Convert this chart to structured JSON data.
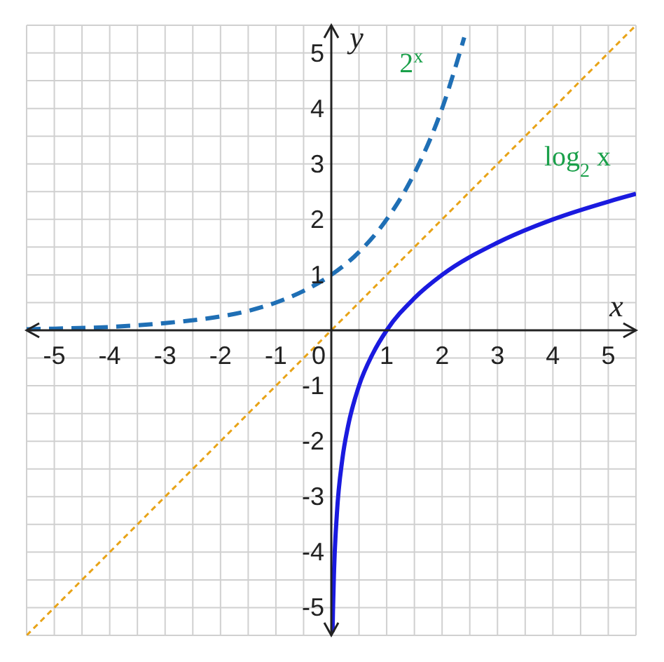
{
  "chart_data": {
    "type": "line",
    "xlabel": "x",
    "ylabel": "y",
    "xlim": [
      -5.5,
      5.5
    ],
    "ylim": [
      -5.5,
      5.5
    ],
    "xticks": [
      -5,
      -4,
      -3,
      -2,
      -1,
      0,
      1,
      2,
      3,
      4,
      5
    ],
    "yticks": [
      -5,
      -4,
      -3,
      -2,
      -1,
      1,
      2,
      3,
      4,
      5
    ],
    "grid": true,
    "marker": "none",
    "series": [
      {
        "name": "2$^{x}$",
        "color": "#1f6fb5",
        "line_style": "dashed",
        "x": [
          -5.5,
          -5,
          -4,
          -3,
          -2,
          -1.5,
          -1,
          -0.5,
          0,
          0.5,
          1,
          1.5,
          2,
          2.4
        ],
        "values": [
          0.02,
          0.03,
          0.06,
          0.13,
          0.25,
          0.35,
          0.5,
          0.71,
          1,
          1.41,
          2,
          2.83,
          4,
          5.28
        ]
      },
      {
        "name": "log$_{2}$ x",
        "color": "#1a1adf",
        "line_style": "solid",
        "x": [
          0.023,
          0.03,
          0.05,
          0.1,
          0.2,
          0.3,
          0.5,
          0.75,
          1,
          1.5,
          2,
          3,
          4,
          5,
          5.5
        ],
        "values": [
          -5.44,
          -5.06,
          -4.32,
          -3.32,
          -2.32,
          -1.74,
          -1,
          -0.42,
          0,
          0.58,
          1,
          1.58,
          2,
          2.32,
          2.46
        ]
      },
      {
        "color": "#e8a317",
        "line_style": "dotted",
        "x": [
          -5.5,
          5.5
        ],
        "values": [
          -5.5,
          5.5
        ]
      }
    ]
  }
}
